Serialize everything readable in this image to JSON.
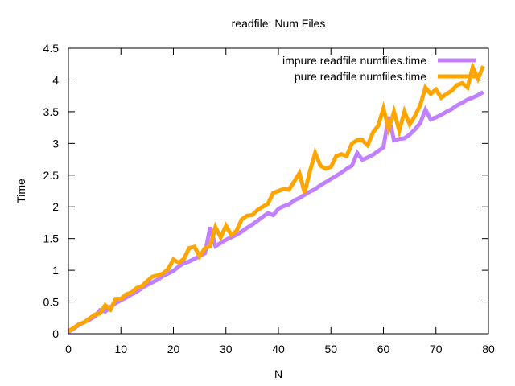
{
  "chart_data": {
    "type": "line",
    "title": "readfile: Num Files",
    "xlabel": "N",
    "ylabel": "Time",
    "xlim": [
      0,
      80
    ],
    "ylim": [
      0,
      4.5
    ],
    "xticks": [
      0,
      10,
      20,
      30,
      40,
      50,
      60,
      70,
      80
    ],
    "xtick_labels": [
      "0",
      "10",
      "20",
      "30",
      "40",
      "50",
      "60",
      "70",
      "80"
    ],
    "yticks": [
      0,
      0.5,
      1,
      1.5,
      2,
      2.5,
      3,
      3.5,
      4,
      4.5
    ],
    "ytick_labels": [
      "0",
      "0.5",
      "1",
      "1.5",
      "2",
      "2.5",
      "3",
      "3.5",
      "4",
      "4.5"
    ],
    "grid": false,
    "legend_position": "top-right",
    "series": [
      {
        "name": "impure readfile numfiles.time",
        "color": "#c080ff",
        "x": [
          0,
          1,
          2,
          3,
          4,
          5,
          6,
          7,
          8,
          9,
          10,
          11,
          12,
          13,
          14,
          15,
          16,
          17,
          18,
          19,
          20,
          21,
          22,
          23,
          24,
          25,
          26,
          27,
          28,
          29,
          30,
          31,
          32,
          33,
          34,
          35,
          36,
          37,
          38,
          39,
          40,
          41,
          42,
          43,
          44,
          45,
          46,
          47,
          48,
          49,
          50,
          51,
          52,
          53,
          54,
          55,
          56,
          57,
          58,
          59,
          60,
          61,
          62,
          63,
          64,
          65,
          66,
          67,
          68,
          69,
          70,
          71,
          72,
          73,
          74,
          75,
          76,
          77,
          78,
          79
        ],
        "values": [
          0.03,
          0.08,
          0.14,
          0.18,
          0.22,
          0.27,
          0.37,
          0.35,
          0.42,
          0.48,
          0.53,
          0.57,
          0.62,
          0.66,
          0.72,
          0.77,
          0.81,
          0.85,
          0.91,
          0.95,
          0.99,
          1.06,
          1.11,
          1.14,
          1.18,
          1.22,
          1.27,
          1.68,
          1.38,
          1.43,
          1.48,
          1.52,
          1.56,
          1.61,
          1.67,
          1.72,
          1.78,
          1.84,
          1.9,
          1.87,
          1.97,
          2.01,
          2.04,
          2.1,
          2.14,
          2.19,
          2.24,
          2.28,
          2.34,
          2.39,
          2.44,
          2.49,
          2.54,
          2.6,
          2.65,
          2.85,
          2.74,
          2.78,
          2.82,
          2.88,
          2.94,
          3.42,
          3.05,
          3.07,
          3.08,
          3.14,
          3.22,
          3.32,
          3.53,
          3.38,
          3.41,
          3.45,
          3.5,
          3.54,
          3.6,
          3.64,
          3.69,
          3.72,
          3.76,
          3.81
        ]
      },
      {
        "name": "pure readfile numfiles.time",
        "color": "#ffa500",
        "x": [
          0,
          1,
          2,
          3,
          4,
          5,
          6,
          7,
          8,
          9,
          10,
          11,
          12,
          13,
          14,
          15,
          16,
          17,
          18,
          19,
          20,
          21,
          22,
          23,
          24,
          25,
          26,
          27,
          28,
          29,
          30,
          31,
          32,
          33,
          34,
          35,
          36,
          37,
          38,
          39,
          40,
          41,
          42,
          43,
          44,
          45,
          46,
          47,
          48,
          49,
          50,
          51,
          52,
          53,
          54,
          55,
          56,
          57,
          58,
          59,
          60,
          61,
          62,
          63,
          64,
          65,
          66,
          67,
          68,
          69,
          70,
          71,
          72,
          73,
          74,
          75,
          76,
          77,
          78,
          79
        ],
        "values": [
          0.04,
          0.09,
          0.15,
          0.18,
          0.24,
          0.3,
          0.32,
          0.45,
          0.38,
          0.55,
          0.55,
          0.62,
          0.65,
          0.72,
          0.75,
          0.83,
          0.9,
          0.92,
          0.95,
          1.02,
          1.17,
          1.12,
          1.18,
          1.35,
          1.37,
          1.22,
          1.35,
          1.38,
          1.68,
          1.52,
          1.7,
          1.56,
          1.62,
          1.8,
          1.86,
          1.87,
          1.95,
          2.0,
          2.05,
          2.22,
          2.25,
          2.28,
          2.27,
          2.4,
          2.53,
          2.22,
          2.56,
          2.85,
          2.65,
          2.6,
          2.63,
          2.8,
          2.83,
          2.8,
          3.0,
          3.05,
          3.05,
          2.97,
          3.17,
          3.28,
          3.55,
          3.23,
          3.5,
          3.2,
          3.5,
          3.3,
          3.43,
          3.6,
          3.88,
          3.78,
          3.85,
          3.72,
          3.78,
          3.83,
          3.92,
          3.95,
          3.88,
          4.2,
          4.02,
          4.22
        ]
      }
    ]
  }
}
